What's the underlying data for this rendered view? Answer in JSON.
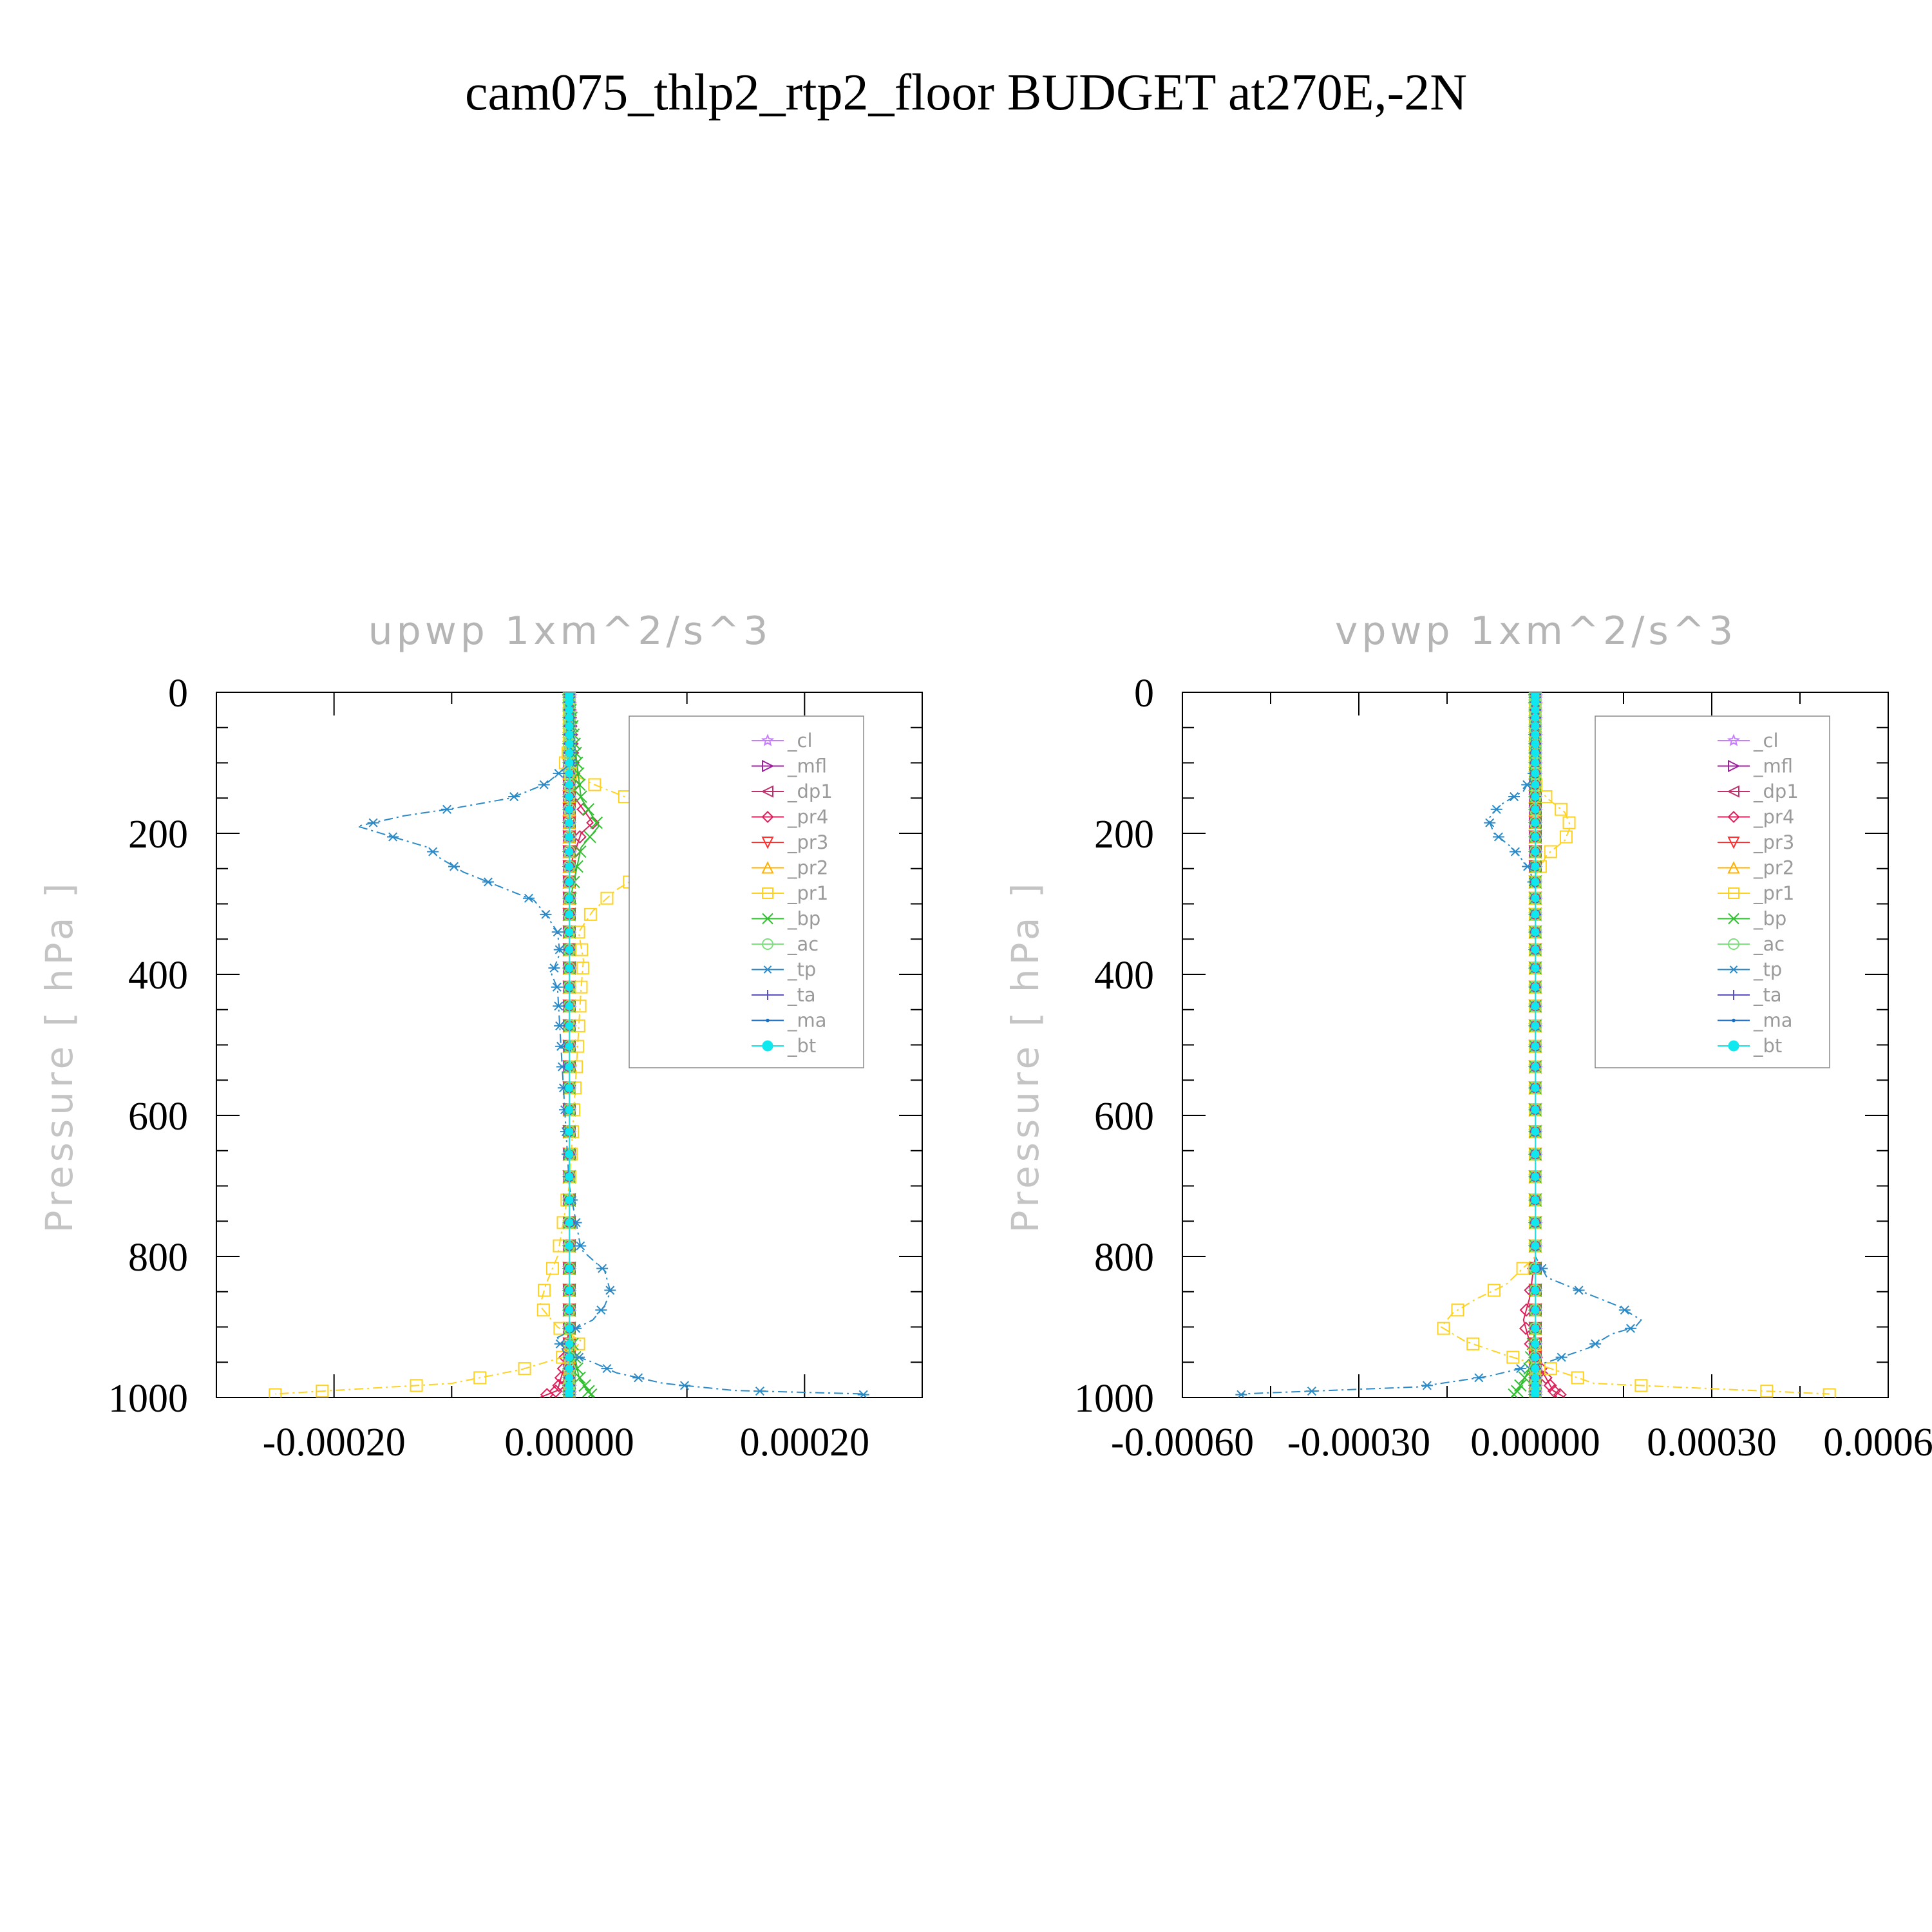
{
  "figure_title": "cam075_thlp2_rtp2_floor  BUDGET at270E,-2N",
  "chart_data": [
    {
      "type": "line",
      "title": "upwp    1xm^2/s^3",
      "ylabel": "Pressure  [ hPa ]",
      "xlim": [
        -0.0003,
        0.0003
      ],
      "ylim": [
        1000,
        0
      ],
      "xticks": [
        -0.0002,
        0.0,
        0.0002
      ],
      "xtick_labels": [
        "-0.00020",
        "0.00000",
        "0.00020"
      ],
      "yticks": [
        0,
        200,
        400,
        600,
        800,
        1000
      ],
      "ytick_labels": [
        "0",
        "200",
        "400",
        "600",
        "800",
        "1000"
      ],
      "legend_position": "top-right",
      "series": [
        {
          "name": "_cl",
          "color": "#c77dff",
          "marker": "star",
          "p": [
            10,
            100,
            200,
            300,
            400,
            500,
            600,
            700,
            800,
            900,
            1000
          ],
          "x": [
            0,
            0,
            0,
            0,
            0,
            0,
            0,
            0,
            0,
            0,
            0
          ]
        },
        {
          "name": "_mfl",
          "color": "#a020a0",
          "marker": "tri-right",
          "p": [
            10,
            100,
            200,
            300,
            400,
            500,
            600,
            700,
            800,
            900,
            1000
          ],
          "x": [
            0,
            0,
            0,
            0,
            0,
            0,
            0,
            0,
            0,
            0,
            0
          ]
        },
        {
          "name": "_dp1",
          "color": "#c0306a",
          "marker": "tri-left",
          "p": [
            10,
            100,
            200,
            300,
            400,
            500,
            600,
            700,
            800,
            900,
            1000
          ],
          "x": [
            0,
            0,
            0,
            0,
            0,
            0,
            0,
            0,
            0,
            0,
            0
          ]
        },
        {
          "name": "_pr4",
          "color": "#e0205a",
          "marker": "diamond",
          "p": [
            10,
            150,
            185,
            200,
            250,
            500,
            900,
            960,
            990,
            1000
          ],
          "x": [
            0,
            5e-06,
            2e-05,
            1e-05,
            0,
            0,
            0,
            -5e-06,
            -1e-05,
            -2.5e-05
          ]
        },
        {
          "name": "_pr3",
          "color": "#ff3030",
          "marker": "tri-down",
          "p": [
            10,
            500,
            1000
          ],
          "x": [
            0,
            0,
            0
          ]
        },
        {
          "name": "_pr2",
          "color": "#ffb000",
          "marker": "tri-up",
          "p": [
            10,
            500,
            1000
          ],
          "x": [
            0,
            0,
            0
          ]
        },
        {
          "name": "_pr1",
          "color": "#ffd21f",
          "marker": "square",
          "p": [
            0,
            80,
            110,
            130,
            150,
            170,
            190,
            210,
            230,
            250,
            280,
            310,
            340,
            380,
            420,
            700,
            800,
            840,
            870,
            900,
            920,
            940,
            960,
            980,
            995
          ],
          "x": [
            0,
            0,
            -5e-06,
            2e-05,
            5e-05,
            0.0001,
            0.000135,
            0.000125,
            0.0001,
            7e-05,
            4e-05,
            2e-05,
            8e-06,
            1.2e-05,
            1e-05,
            0,
            -1e-05,
            -2e-05,
            -2.5e-05,
            -1e-05,
            1e-05,
            0,
            -4e-05,
            -0.0001,
            -0.00025
          ]
        },
        {
          "name": "_bp",
          "color": "#30c030",
          "marker": "x",
          "p": [
            10,
            150,
            190,
            220,
            300,
            900,
            970,
            1000
          ],
          "x": [
            0,
            1e-05,
            2.5e-05,
            1e-05,
            0,
            0,
            8e-06,
            2e-05
          ]
        },
        {
          "name": "_ac",
          "color": "#7fe07f",
          "marker": "circle",
          "p": [
            10,
            500,
            1000
          ],
          "x": [
            0,
            0,
            0
          ]
        },
        {
          "name": "_tp",
          "color": "#2a8ac8",
          "marker": "asterisk",
          "p": [
            0,
            100,
            130,
            150,
            165,
            175,
            190,
            205,
            220,
            235,
            255,
            275,
            295,
            315,
            340,
            370,
            400,
            420,
            700,
            790,
            820,
            850,
            870,
            890,
            915,
            935,
            950,
            965,
            980,
            990,
            995
          ],
          "x": [
            0,
            2e-06,
            -2e-05,
            -5e-05,
            -0.0001,
            -0.00014,
            -0.00018,
            -0.00015,
            -0.00012,
            -0.00011,
            -9e-05,
            -6e-05,
            -3e-05,
            -2e-05,
            -1e-05,
            -8e-06,
            -1.5e-05,
            -1e-05,
            0,
            1e-05,
            3e-05,
            3.5e-05,
            3e-05,
            2e-05,
            -1e-05,
            -5e-06,
            2e-05,
            4e-05,
            8e-05,
            0.00014,
            0.00025
          ]
        },
        {
          "name": "_ta",
          "color": "#5a50c8",
          "marker": "plus",
          "p": [
            10,
            500,
            1000
          ],
          "x": [
            0,
            0,
            0
          ]
        },
        {
          "name": "_ma",
          "color": "#1c6cc0",
          "marker": "dot",
          "p": [
            10,
            500,
            1000
          ],
          "x": [
            0,
            0,
            0
          ]
        },
        {
          "name": "_bt",
          "color": "#10e8f0",
          "marker": "filled-circle",
          "p": [
            10,
            500,
            1000
          ],
          "x": [
            0,
            0,
            0
          ]
        }
      ]
    },
    {
      "type": "line",
      "title": "vpwp    1xm^2/s^3",
      "ylabel": "Pressure  [ hPa ]",
      "xlim": [
        -0.0006,
        0.0006
      ],
      "ylim": [
        1000,
        0
      ],
      "xticks": [
        -0.0006,
        -0.0003,
        0.0,
        0.0003,
        0.0006
      ],
      "xtick_labels": [
        "-0.00060",
        "-0.00030",
        "0.00000",
        "0.00030",
        "0.00060"
      ],
      "yticks": [
        0,
        200,
        400,
        600,
        800,
        1000
      ],
      "ytick_labels": [
        "0",
        "200",
        "400",
        "600",
        "800",
        "1000"
      ],
      "legend_position": "top-right",
      "series": [
        {
          "name": "_cl",
          "color": "#c77dff",
          "marker": "star",
          "p": [
            10,
            100,
            200,
            300,
            400,
            500,
            600,
            700,
            800,
            900,
            1000
          ],
          "x": [
            0,
            0,
            0,
            0,
            0,
            0,
            0,
            0,
            0,
            0,
            0
          ]
        },
        {
          "name": "_mfl",
          "color": "#a020a0",
          "marker": "tri-right",
          "p": [
            10,
            100,
            200,
            300,
            400,
            500,
            600,
            700,
            800,
            900,
            1000
          ],
          "x": [
            0,
            0,
            0,
            0,
            0,
            0,
            0,
            0,
            0,
            0,
            0
          ]
        },
        {
          "name": "_dp1",
          "color": "#c0306a",
          "marker": "tri-left",
          "p": [
            10,
            100,
            200,
            300,
            400,
            500,
            600,
            700,
            800,
            900,
            1000
          ],
          "x": [
            0,
            0,
            0,
            0,
            0,
            0,
            0,
            0,
            0,
            0,
            0
          ]
        },
        {
          "name": "_pr4",
          "color": "#e0205a",
          "marker": "diamond",
          "p": [
            10,
            800,
            860,
            890,
            920,
            960,
            990,
            1000
          ],
          "x": [
            0,
            0,
            -1e-05,
            -2e-05,
            -1e-05,
            1e-05,
            3e-05,
            5e-05
          ]
        },
        {
          "name": "_pr3",
          "color": "#ff3030",
          "marker": "tri-down",
          "p": [
            10,
            500,
            1000
          ],
          "x": [
            0,
            0,
            0
          ]
        },
        {
          "name": "_pr2",
          "color": "#ffb000",
          "marker": "tri-up",
          "p": [
            10,
            500,
            1000
          ],
          "x": [
            0,
            0,
            0
          ]
        },
        {
          "name": "_pr1",
          "color": "#ffd21f",
          "marker": "square",
          "p": [
            0,
            130,
            150,
            170,
            190,
            210,
            230,
            260,
            300,
            500,
            800,
            840,
            860,
            880,
            900,
            920,
            940,
            960,
            980,
            995
          ],
          "x": [
            0,
            0,
            2e-05,
            5e-05,
            6e-05,
            5e-05,
            2e-05,
            0,
            0,
            0,
            0,
            -5e-05,
            -0.0001,
            -0.00014,
            -0.00016,
            -0.00012,
            -5e-05,
            3e-05,
            0.0001,
            0.0005
          ]
        },
        {
          "name": "_bp",
          "color": "#30c030",
          "marker": "x",
          "p": [
            10,
            900,
            960,
            990,
            1000
          ],
          "x": [
            0,
            0,
            -1e-05,
            -3e-05,
            -4e-05
          ]
        },
        {
          "name": "_ac",
          "color": "#7fe07f",
          "marker": "circle",
          "p": [
            10,
            500,
            1000
          ],
          "x": [
            0,
            0,
            0
          ]
        },
        {
          "name": "_tp",
          "color": "#2a8ac8",
          "marker": "asterisk",
          "p": [
            0,
            110,
            140,
            160,
            180,
            200,
            220,
            250,
            280,
            800,
            830,
            850,
            870,
            890,
            900,
            910,
            930,
            950,
            970,
            985,
            995
          ],
          "x": [
            0,
            0,
            -2e-05,
            -6e-05,
            -8e-05,
            -7e-05,
            -4e-05,
            -1e-05,
            0,
            0,
            2e-05,
            8e-05,
            0.00014,
            0.00018,
            0.00017,
            0.00013,
            9e-05,
            2e-05,
            -8e-05,
            -0.0002,
            -0.0005
          ]
        },
        {
          "name": "_ta",
          "color": "#5a50c8",
          "marker": "plus",
          "p": [
            10,
            500,
            1000
          ],
          "x": [
            0,
            0,
            0
          ]
        },
        {
          "name": "_ma",
          "color": "#1c6cc0",
          "marker": "dot",
          "p": [
            10,
            500,
            1000
          ],
          "x": [
            0,
            0,
            0
          ]
        },
        {
          "name": "_bt",
          "color": "#10e8f0",
          "marker": "filled-circle",
          "p": [
            10,
            500,
            1000
          ],
          "x": [
            0,
            0,
            0
          ]
        }
      ]
    }
  ]
}
